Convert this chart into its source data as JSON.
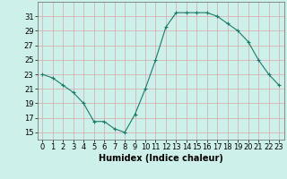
{
  "x": [
    0,
    1,
    2,
    3,
    4,
    5,
    6,
    7,
    8,
    9,
    10,
    11,
    12,
    13,
    14,
    15,
    16,
    17,
    18,
    19,
    20,
    21,
    22,
    23
  ],
  "y": [
    23,
    22.5,
    21.5,
    20.5,
    19,
    16.5,
    16.5,
    15.5,
    15,
    17.5,
    21,
    25,
    29.5,
    31.5,
    31.5,
    31.5,
    31.5,
    31,
    30,
    29,
    27.5,
    25,
    23,
    21.5
  ],
  "xlabel": "Humidex (Indice chaleur)",
  "xlim": [
    -0.5,
    23.5
  ],
  "ylim": [
    14,
    33
  ],
  "yticks": [
    15,
    17,
    19,
    21,
    23,
    25,
    27,
    29,
    31
  ],
  "xticks": [
    0,
    1,
    2,
    3,
    4,
    5,
    6,
    7,
    8,
    9,
    10,
    11,
    12,
    13,
    14,
    15,
    16,
    17,
    18,
    19,
    20,
    21,
    22,
    23
  ],
  "line_color": "#1a7a6a",
  "marker": "+",
  "bg_color": "#cef0ea",
  "grid_color": "#d8a8a8",
  "xlabel_fontsize": 7,
  "tick_fontsize": 6
}
